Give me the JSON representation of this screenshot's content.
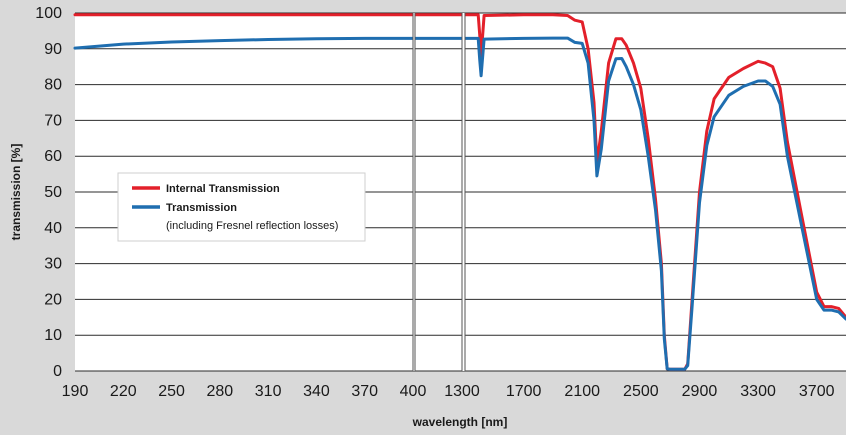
{
  "chart_data": {
    "type": "line",
    "xlabel": "wavelength [nm]",
    "ylabel": "transmission [%]",
    "ylim": [
      0,
      100
    ],
    "y_ticks": [
      "0",
      "10",
      "20",
      "30",
      "40",
      "50",
      "60",
      "70",
      "80",
      "90",
      "100"
    ],
    "x_axis_segments": [
      {
        "range": [
          190,
          400
        ],
        "ticks": [
          "190",
          "220",
          "250",
          "280",
          "310",
          "340",
          "370",
          "400"
        ]
      },
      {
        "range": [
          400,
          1300
        ],
        "ticks": [
          "400",
          "1300"
        ]
      },
      {
        "range": [
          1300,
          3900
        ],
        "ticks": [
          "1300",
          "1700",
          "2100",
          "2500",
          "2900",
          "3300",
          "3700"
        ]
      }
    ],
    "grid": "horizontal",
    "legend": {
      "position": "center-left",
      "note": "(including Fresnel reflection losses)"
    },
    "series": [
      {
        "name": "Internal Transmission",
        "color": "#e3202a",
        "x": [
          190,
          400,
          401,
          1300,
          1301,
          1390,
          1400,
          1410,
          1430,
          1700,
          1900,
          2000,
          2050,
          2100,
          2140,
          2180,
          2200,
          2230,
          2280,
          2330,
          2370,
          2400,
          2450,
          2500,
          2550,
          2600,
          2640,
          2660,
          2680,
          2700,
          2800,
          2820,
          2850,
          2900,
          2950,
          3000,
          3100,
          3200,
          3300,
          3350,
          3400,
          3450,
          3500,
          3600,
          3700,
          3750,
          3800,
          3850,
          3900
        ],
        "y": [
          99.5,
          99.5,
          99.5,
          99.5,
          99.5,
          99.5,
          94,
          88,
          99.3,
          99.5,
          99.5,
          99.3,
          98,
          97.5,
          90,
          75,
          58,
          67,
          86,
          92.8,
          92.8,
          91,
          86,
          79,
          65,
          48,
          30,
          10,
          0.6,
          0.5,
          0.5,
          2,
          20,
          50,
          67,
          76,
          82,
          84.5,
          86.5,
          86,
          85,
          79,
          64,
          43,
          22,
          18,
          18,
          17.5,
          15
        ]
      },
      {
        "name": "Transmission",
        "color": "#1f6eb0",
        "x": [
          190,
          220,
          250,
          280,
          310,
          340,
          370,
          400,
          401,
          1300,
          1301,
          1390,
          1400,
          1410,
          1430,
          1700,
          1900,
          2000,
          2050,
          2100,
          2140,
          2180,
          2200,
          2230,
          2280,
          2330,
          2370,
          2400,
          2450,
          2500,
          2550,
          2600,
          2640,
          2660,
          2680,
          2700,
          2800,
          2820,
          2850,
          2900,
          2950,
          3000,
          3100,
          3200,
          3300,
          3350,
          3400,
          3450,
          3500,
          3600,
          3700,
          3750,
          3800,
          3850,
          3900
        ],
        "y": [
          90.2,
          91.3,
          91.9,
          92.3,
          92.6,
          92.8,
          92.9,
          92.9,
          92.9,
          92.9,
          92.9,
          92.9,
          87,
          82.5,
          92.7,
          92.9,
          93,
          93,
          91.8,
          91.5,
          86,
          70,
          54.5,
          62,
          81,
          87.2,
          87.3,
          85,
          80,
          73,
          60,
          45,
          28,
          9,
          0.6,
          0.5,
          0.5,
          1.5,
          18,
          47,
          63,
          71,
          77,
          79.5,
          81,
          81,
          79.5,
          74.5,
          60,
          40,
          20,
          17,
          17,
          16.5,
          14.5
        ]
      }
    ]
  }
}
